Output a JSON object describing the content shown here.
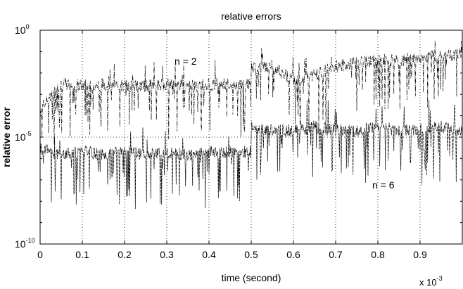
{
  "chart_data": {
    "type": "line",
    "title": "relative errors",
    "xlabel": "time (second)",
    "ylabel": "relative error",
    "x_multiplier": "x 10",
    "x_multiplier_exp": "-3",
    "xlim": [
      0,
      1.0
    ],
    "ylim": [
      1e-10,
      1
    ],
    "yscale": "log",
    "x_ticks": [
      "0",
      "0.1",
      "0.2",
      "0.3",
      "0.4",
      "0.5",
      "0.6",
      "0.7",
      "0.8",
      "0.9"
    ],
    "x_tick_values": [
      0,
      0.1,
      0.2,
      0.3,
      0.4,
      0.5,
      0.6,
      0.7,
      0.8,
      0.9
    ],
    "y_ticks": [
      {
        "base": "10",
        "exp": "0",
        "value": 1
      },
      {
        "base": "10",
        "exp": "-5",
        "value": 1e-05
      },
      {
        "base": "10",
        "exp": "-10",
        "value": 1e-10
      }
    ],
    "grid": true,
    "series": [
      {
        "name": "n = 2",
        "x": [
          0.0,
          0.05,
          0.1,
          0.15,
          0.2,
          0.25,
          0.3,
          0.35,
          0.4,
          0.45,
          0.499,
          0.501,
          0.55,
          0.6,
          0.65,
          0.7,
          0.75,
          0.8,
          0.85,
          0.9,
          0.95,
          1.0
        ],
        "y": [
          0.0002,
          0.003,
          0.0025,
          0.003,
          0.0025,
          0.0025,
          0.003,
          0.0025,
          0.003,
          0.003,
          0.003,
          0.02,
          0.02,
          0.005,
          0.008,
          0.02,
          0.03,
          0.04,
          0.04,
          0.05,
          0.06,
          0.08
        ]
      },
      {
        "name": "n = 6",
        "x": [
          0.0,
          0.05,
          0.1,
          0.15,
          0.2,
          0.25,
          0.3,
          0.35,
          0.4,
          0.45,
          0.499,
          0.501,
          0.55,
          0.6,
          0.65,
          0.7,
          0.75,
          0.8,
          0.85,
          0.9,
          0.95,
          1.0
        ],
        "y": [
          3e-06,
          1.5e-06,
          2e-06,
          1.5e-06,
          2e-06,
          1.5e-06,
          2e-06,
          1.5e-06,
          2e-06,
          2e-06,
          2e-06,
          3e-05,
          2e-05,
          2e-05,
          3e-05,
          2e-05,
          2e-05,
          3e-05,
          2e-05,
          2e-05,
          3e-05,
          2e-05
        ]
      }
    ],
    "annotations": [
      "n = 2",
      "n = 6"
    ]
  }
}
